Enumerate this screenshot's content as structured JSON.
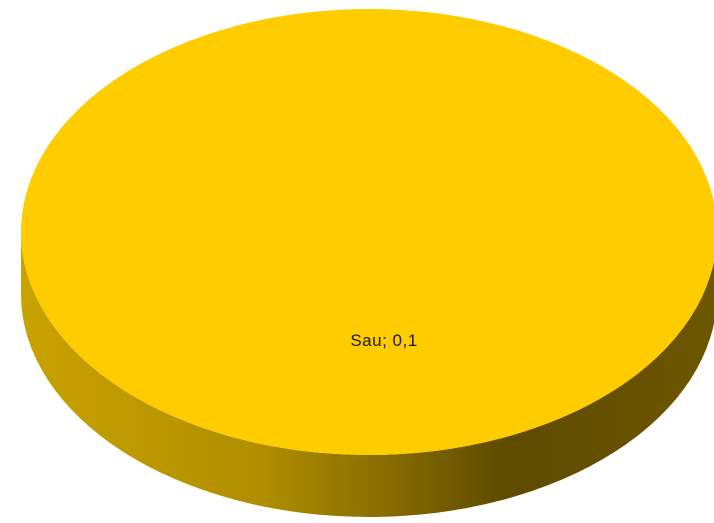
{
  "chart_data": {
    "type": "pie",
    "style": "3d",
    "title": "",
    "slices": [
      {
        "label": "Sau",
        "value": 0.1,
        "data_label": "Sau;  0,1",
        "color": "#FFCC00"
      }
    ],
    "legend": "none"
  },
  "colors": {
    "top_face": "#FFCC00",
    "side_light": "#C9A200",
    "side_dark": "#5E4A00"
  }
}
